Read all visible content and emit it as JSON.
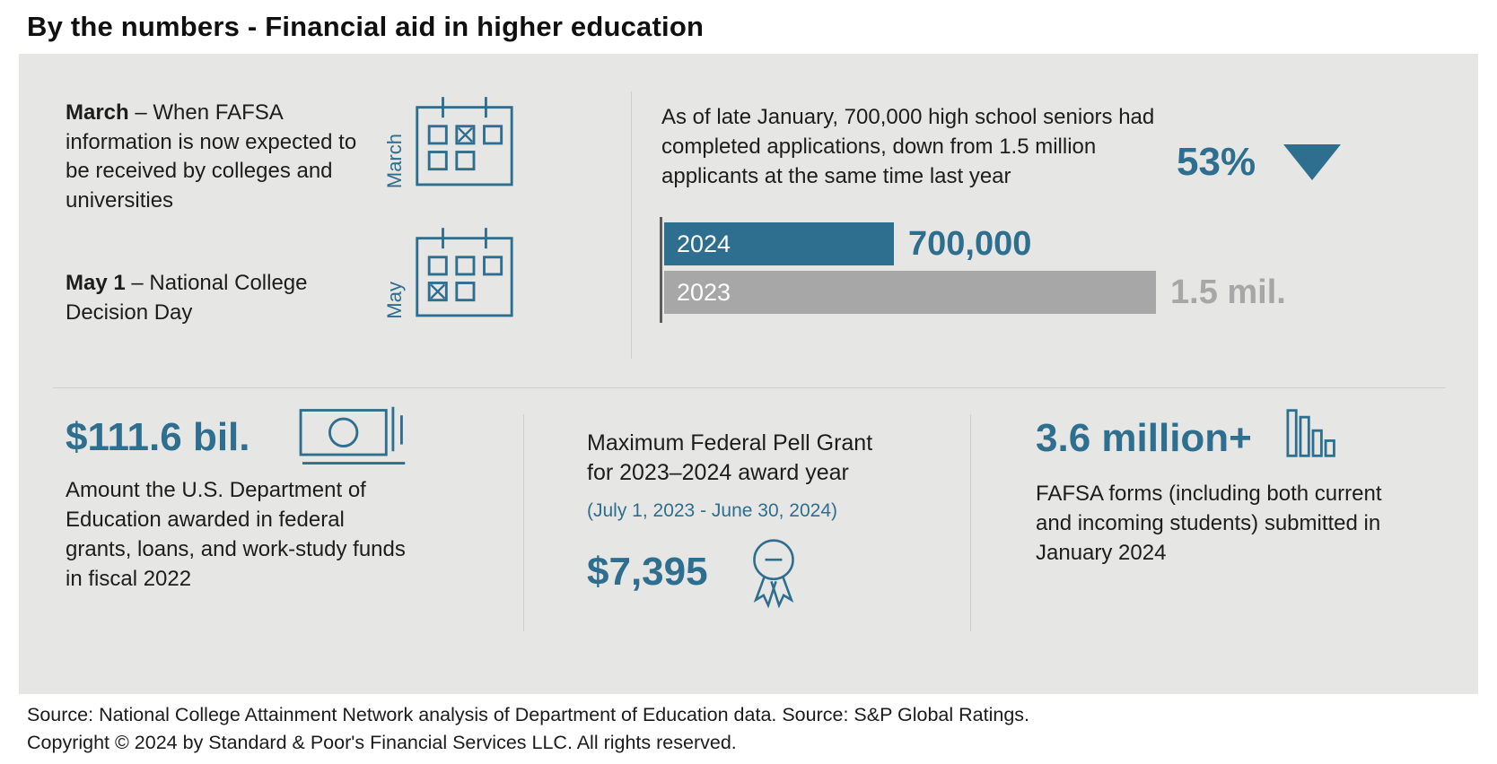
{
  "page_title": "By the numbers - Financial aid in higher education",
  "colors": {
    "accent_teal": "#2e6e8e",
    "bar_gray": "#a7a7a7",
    "panel_background": "#e6e6e4"
  },
  "timeline": {
    "items": [
      {
        "label_bold": "March",
        "label_rest": " – When FAFSA information is now expected to be received by colleges and universities",
        "month": "March"
      },
      {
        "label_bold": "May 1",
        "label_rest": " – National College Decision Day",
        "month": "May"
      }
    ]
  },
  "applications": {
    "description": "As of late January, 700,000 high school seniors had completed applications, down from 1.5 million applicants at the same time last year"
  },
  "chart_data": {
    "type": "bar",
    "orientation": "horizontal",
    "categories": [
      "2024",
      "2023"
    ],
    "values": [
      700000,
      1500000
    ],
    "value_labels": [
      "700,000",
      "1.5 mil."
    ],
    "bar_colors": [
      "#2e6e8e",
      "#a7a7a7"
    ],
    "change_label": "53%",
    "change_direction": "down",
    "xlim": [
      0,
      1500000
    ],
    "legend": "none",
    "grid": "off"
  },
  "stats": [
    {
      "headline": "$111.6 bil.",
      "description": "Amount the U.S. Department of Education awarded in federal grants, loans, and work-study funds in fiscal 2022",
      "icon": "banknote-icon"
    },
    {
      "title": "Maximum Federal Pell Grant for 2023–2024 award year",
      "subtitle": "(July 1, 2023 - June 30, 2024)",
      "headline": "$7,395",
      "icon": "medal-icon"
    },
    {
      "headline": "3.6 million+",
      "description": "FAFSA forms (including both current and incoming students) submitted in January 2024",
      "icon": "column-chart-icon"
    }
  ],
  "footer": {
    "source": "Source: National College Attainment Network analysis of Department of Education data. Source: S&P Global Ratings.",
    "copyright": "Copyright © 2024 by Standard & Poor's Financial Services LLC. All rights reserved."
  }
}
